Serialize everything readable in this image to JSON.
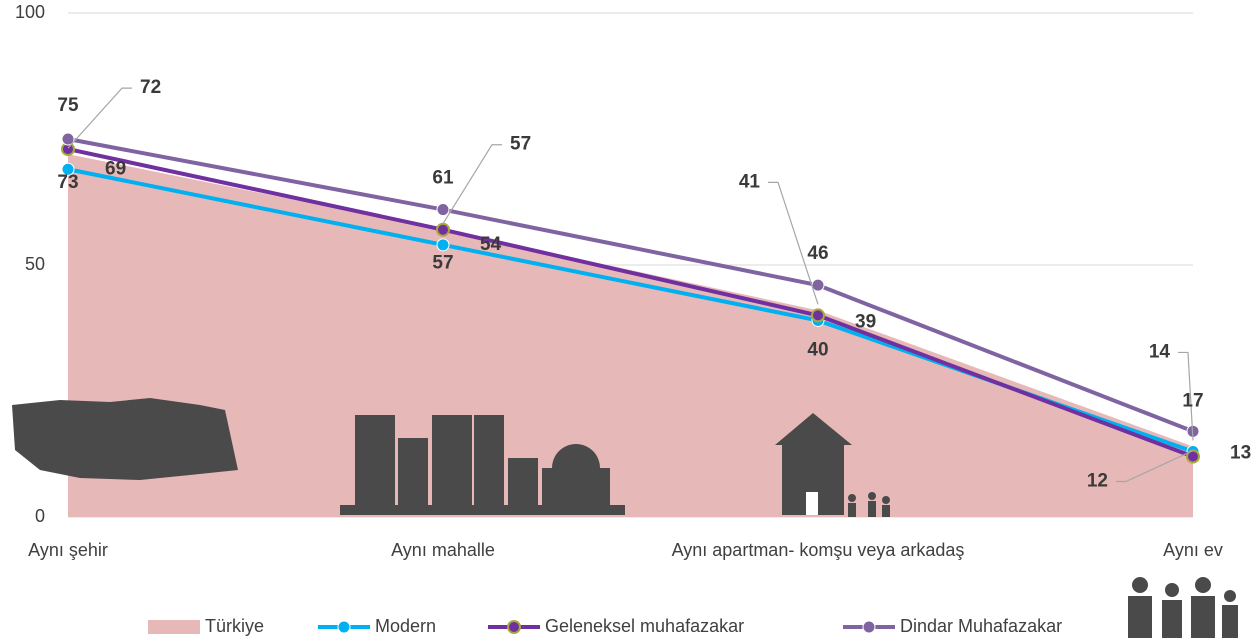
{
  "chart_data": {
    "type": "line",
    "categories": [
      "Aynı şehir",
      "Aynı mahalle",
      "Aynı apartman- komşu veya arkadaş",
      "Aynı ev"
    ],
    "series": [
      {
        "name": "Türkiye",
        "color": "#e6b8b7",
        "values": [
          72,
          57,
          41,
          14
        ]
      },
      {
        "name": "Modern",
        "color": "#00b0f0",
        "values": [
          69,
          54,
          39,
          13
        ]
      },
      {
        "name": "Geleneksel muhafazakar",
        "color": "#7030a0",
        "values": [
          73,
          57,
          40,
          12
        ]
      },
      {
        "name": "Dindar Muhafazakar",
        "color": "#8064a2",
        "values": [
          75,
          61,
          46,
          17
        ]
      }
    ],
    "ylim": [
      0,
      100
    ],
    "yticks": [
      0,
      50,
      100
    ],
    "grid": true
  }
}
